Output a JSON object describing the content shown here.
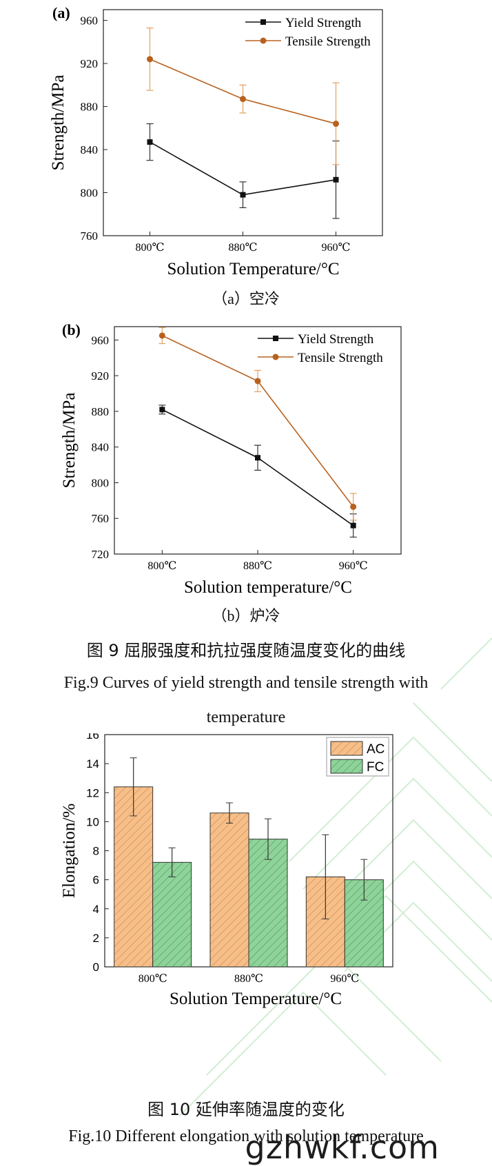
{
  "chart_data": [
    {
      "type": "line",
      "panel_label": "(a)",
      "categories": [
        "800℃",
        "880℃",
        "960℃"
      ],
      "xlabel": "Solution Temperature/°C",
      "ylabel": "Strength/MPa",
      "ylim": [
        760,
        970
      ],
      "yticks": [
        760,
        800,
        840,
        880,
        920,
        960
      ],
      "legend_position": "top-right",
      "grid": false,
      "series": [
        {
          "name": "Yield Strength",
          "values": [
            847,
            798,
            812
          ],
          "errors": [
            17,
            12,
            36
          ],
          "color": "#111111",
          "marker": "square"
        },
        {
          "name": "Tensile Strength",
          "values": [
            924,
            887,
            864
          ],
          "errors": [
            29,
            13,
            38
          ],
          "color": "#b8611e",
          "marker": "circle"
        }
      ],
      "caption": "（a）空冷"
    },
    {
      "type": "line",
      "panel_label": "(b)",
      "categories": [
        "800℃",
        "880℃",
        "960℃"
      ],
      "xlabel": "Solution temperature/°C",
      "ylabel": "Strength/MPa",
      "ylim": [
        720,
        975
      ],
      "yticks": [
        720,
        760,
        800,
        840,
        880,
        920,
        960
      ],
      "legend_position": "top-right",
      "grid": false,
      "series": [
        {
          "name": "Yield Strength",
          "values": [
            882,
            828,
            752
          ],
          "errors": [
            5,
            14,
            13
          ],
          "color": "#111111",
          "marker": "square"
        },
        {
          "name": "Tensile Strength",
          "values": [
            965,
            914,
            773
          ],
          "errors": [
            9,
            12,
            15
          ],
          "color": "#b8611e",
          "marker": "circle"
        }
      ],
      "caption": "（b）炉冷"
    },
    {
      "type": "bar",
      "categories": [
        "800℃",
        "880℃",
        "960℃"
      ],
      "xlabel": "Solution Temperature/°C",
      "ylabel": "Elongation/%",
      "ylim": [
        0,
        16
      ],
      "yticks": [
        0,
        2,
        4,
        6,
        8,
        10,
        12,
        14,
        16
      ],
      "legend_position": "top-right",
      "grid": false,
      "series": [
        {
          "name": "AC",
          "values": [
            12.4,
            10.6,
            6.2
          ],
          "errors": [
            2.0,
            0.7,
            2.9
          ],
          "color": "#f6bf8a"
        },
        {
          "name": "FC",
          "values": [
            7.2,
            8.8,
            6.0
          ],
          "errors": [
            1.0,
            1.4,
            1.4
          ],
          "color": "#8fd39a"
        }
      ]
    }
  ],
  "captions": {
    "fig9_cn": "图 9  屈服强度和抗拉强度随温度变化的曲线",
    "fig9_en": "Fig.9 Curves of yield strength and tensile strength with temperature",
    "fig10_cn": "图 10  延伸率随温度的变化",
    "fig10_en": "Fig.10 Different elongation with solution temperature"
  },
  "watermark": "gzhwkf.com"
}
